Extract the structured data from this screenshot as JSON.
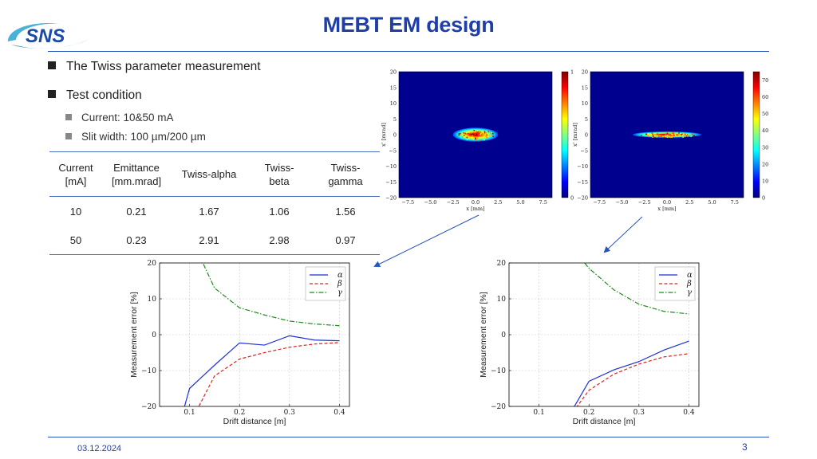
{
  "slide": {
    "title": "MEBT EM design",
    "logo_text": "SNS",
    "footer_date": "03.12.2024",
    "page_number": "3"
  },
  "bullets": [
    {
      "text": "The Twiss parameter measurement",
      "level": 1
    },
    {
      "text": "Test condition",
      "level": 1
    },
    {
      "text": "Current: 10&50 mA",
      "level": 2
    },
    {
      "text": "Slit width: 100 µm/200 µm",
      "level": 2
    }
  ],
  "table": {
    "headers": [
      [
        "Current",
        "[mA]"
      ],
      [
        "Emittance",
        "[mm.mrad]"
      ],
      [
        "Twiss-alpha"
      ],
      [
        "Twiss-",
        "beta"
      ],
      [
        "Twiss-",
        "gamma"
      ]
    ],
    "rows": [
      [
        "10",
        "0.21",
        "1.67",
        "1.06",
        "1.56"
      ],
      [
        "50",
        "0.23",
        "2.91",
        "2.98",
        "0.97"
      ]
    ]
  },
  "colors": {
    "title": "#1f3fa6",
    "rule": "#2a55b8",
    "alpha": "#1f2fd6",
    "beta": "#e02020",
    "gamma": "#1f8a1f",
    "heatmap_bg": "#00008f"
  },
  "chart_data": [
    {
      "type": "heatmap",
      "xlabel": "x [mm]",
      "ylabel": "x' [mrad]",
      "xticks": [
        "−7.5",
        "−5.0",
        "−2.5",
        "0.0",
        "2.5",
        "5.0",
        "7.5"
      ],
      "yticks": [
        "20",
        "15",
        "10",
        "5",
        "0",
        "−5",
        "−10",
        "−15",
        "−20"
      ],
      "xlim": [
        -8.5,
        8.5
      ],
      "ylim": [
        -20,
        20
      ],
      "colorbar_ticks": [
        "0",
        "1"
      ],
      "blob": {
        "x_sigma": 2.5,
        "y_sigma": 2.2
      }
    },
    {
      "type": "heatmap",
      "xlabel": "x [mm]",
      "ylabel": "x' [mrad]",
      "xticks": [
        "−7.5",
        "−5.0",
        "−2.5",
        "0.0",
        "2.5",
        "5.0",
        "7.5"
      ],
      "yticks": [
        "20",
        "15",
        "10",
        "5",
        "0",
        "−5",
        "−10",
        "−15",
        "−20"
      ],
      "xlim": [
        -8.5,
        8.5
      ],
      "ylim": [
        -20,
        20
      ],
      "colorbar_ticks": [
        "0",
        "10",
        "20",
        "30",
        "40",
        "50",
        "60",
        "70"
      ],
      "blob": {
        "x_sigma": 3.8,
        "y_sigma": 1.0
      }
    },
    {
      "type": "line",
      "xlabel": "Drift distance [m]",
      "ylabel": "Measurement error [%]",
      "xlim": [
        0.04,
        0.42
      ],
      "ylim": [
        -20,
        20
      ],
      "xticks": [
        0.1,
        0.2,
        0.3,
        0.4
      ],
      "xtick_labels": [
        "0.1",
        "0.2",
        "0.3",
        "0.4"
      ],
      "yticks": [
        20,
        10,
        0,
        -10,
        -20
      ],
      "ytick_labels": [
        "20",
        "10",
        "0",
        "−10",
        "−20"
      ],
      "grid": true,
      "legend_position": "top-right",
      "series": [
        {
          "name": "α",
          "style": "solid",
          "x": [
            0.08,
            0.1,
            0.15,
            0.2,
            0.25,
            0.3,
            0.35,
            0.4
          ],
          "y": [
            -25,
            -15,
            -8.5,
            -2.3,
            -2.9,
            -0.3,
            -1.5,
            -1.7
          ]
        },
        {
          "name": "β",
          "style": "dashed",
          "x": [
            0.1,
            0.15,
            0.2,
            0.25,
            0.3,
            0.35,
            0.4
          ],
          "y": [
            -25,
            -11.5,
            -6.8,
            -5,
            -3.5,
            -2.6,
            -2.2
          ]
        },
        {
          "name": "γ",
          "style": "dashdot",
          "x": [
            0.12,
            0.15,
            0.2,
            0.25,
            0.3,
            0.35,
            0.4
          ],
          "y": [
            22,
            13,
            7.5,
            5.5,
            3.8,
            3,
            2.5
          ]
        }
      ]
    },
    {
      "type": "line",
      "xlabel": "Drift distance [m]",
      "ylabel": "Measurement error [%]",
      "xlim": [
        0.04,
        0.42
      ],
      "ylim": [
        -20,
        20
      ],
      "xticks": [
        0.1,
        0.2,
        0.3,
        0.4
      ],
      "xtick_labels": [
        "0.1",
        "0.2",
        "0.3",
        "0.4"
      ],
      "yticks": [
        20,
        10,
        0,
        -10,
        -20
      ],
      "ytick_labels": [
        "20",
        "10",
        "0",
        "−10",
        "−20"
      ],
      "grid": true,
      "legend_position": "top-right",
      "series": [
        {
          "name": "α",
          "style": "solid",
          "x": [
            0.15,
            0.2,
            0.25,
            0.3,
            0.35,
            0.4
          ],
          "y": [
            -25,
            -13,
            -9.8,
            -7.5,
            -4.3,
            -1.8
          ]
        },
        {
          "name": "β",
          "style": "dashed",
          "x": [
            0.15,
            0.2,
            0.25,
            0.3,
            0.35,
            0.4
          ],
          "y": [
            -25,
            -15.5,
            -11,
            -8.2,
            -6.2,
            -5.3
          ]
        },
        {
          "name": "γ",
          "style": "dashdot",
          "x": [
            0.18,
            0.2,
            0.25,
            0.3,
            0.35,
            0.4
          ],
          "y": [
            22,
            18.5,
            12.5,
            8.5,
            6.5,
            5.8
          ]
        }
      ]
    }
  ]
}
